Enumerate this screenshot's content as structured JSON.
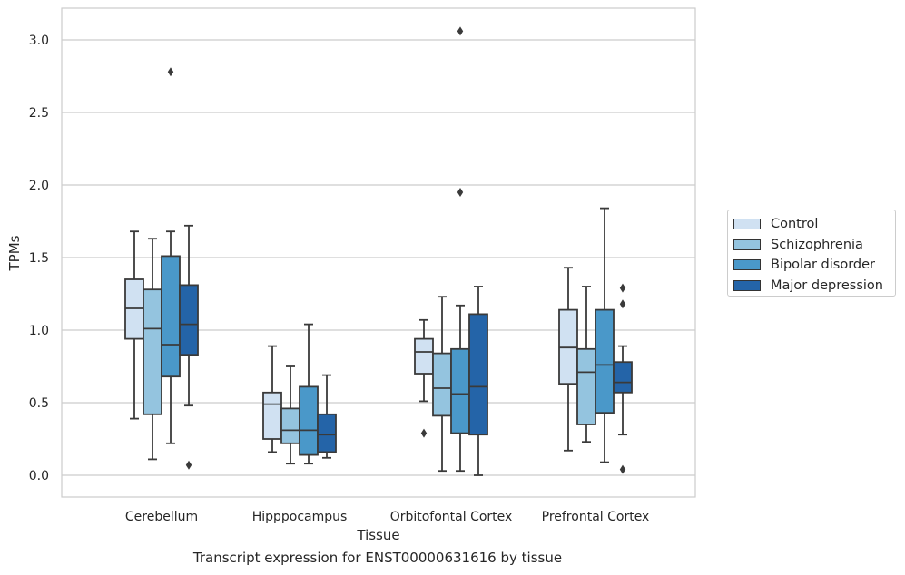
{
  "chart_data": {
    "type": "box",
    "title": "",
    "xlabel": "Tissue",
    "ylabel": "TPMs",
    "caption": "Transcript expression for ENST00000631616 by tissue",
    "ylim": [
      -0.15,
      3.22
    ],
    "yticks": [
      "0.0",
      "0.5",
      "1.0",
      "1.5",
      "2.0",
      "2.5",
      "3.0"
    ],
    "grid": true,
    "legend_position": "right",
    "categories": [
      "Cerebellum",
      "Hipppocampus",
      "Orbitofontal Cortex",
      "Prefrontal Cortex"
    ],
    "series": [
      {
        "name": "Control",
        "color": "#d0e1f2",
        "boxes": [
          {
            "whislo": 0.39,
            "q1": 0.94,
            "med": 1.15,
            "q3": 1.35,
            "whishi": 1.68,
            "fliers": []
          },
          {
            "whislo": 0.16,
            "q1": 0.25,
            "med": 0.49,
            "q3": 0.57,
            "whishi": 0.89,
            "fliers": []
          },
          {
            "whislo": 0.51,
            "q1": 0.7,
            "med": 0.85,
            "q3": 0.94,
            "whishi": 1.07,
            "fliers": [
              0.29
            ]
          },
          {
            "whislo": 0.17,
            "q1": 0.63,
            "med": 0.88,
            "q3": 1.14,
            "whishi": 1.43,
            "fliers": []
          }
        ]
      },
      {
        "name": "Schizophrenia",
        "color": "#94c4df",
        "boxes": [
          {
            "whislo": 0.11,
            "q1": 0.42,
            "med": 1.01,
            "q3": 1.28,
            "whishi": 1.63,
            "fliers": []
          },
          {
            "whislo": 0.08,
            "q1": 0.22,
            "med": 0.31,
            "q3": 0.46,
            "whishi": 0.75,
            "fliers": []
          },
          {
            "whislo": 0.03,
            "q1": 0.41,
            "med": 0.6,
            "q3": 0.84,
            "whishi": 1.23,
            "fliers": []
          },
          {
            "whislo": 0.23,
            "q1": 0.35,
            "med": 0.71,
            "q3": 0.87,
            "whishi": 1.3,
            "fliers": []
          }
        ]
      },
      {
        "name": "Bipolar disorder",
        "color": "#4a98c9",
        "boxes": [
          {
            "whislo": 0.22,
            "q1": 0.68,
            "med": 0.9,
            "q3": 1.51,
            "whishi": 1.68,
            "fliers": [
              2.78
            ]
          },
          {
            "whislo": 0.08,
            "q1": 0.14,
            "med": 0.31,
            "q3": 0.61,
            "whishi": 1.04,
            "fliers": []
          },
          {
            "whislo": 0.03,
            "q1": 0.29,
            "med": 0.56,
            "q3": 0.87,
            "whishi": 1.17,
            "fliers": [
              1.95,
              3.06
            ]
          },
          {
            "whislo": 0.09,
            "q1": 0.43,
            "med": 0.76,
            "q3": 1.14,
            "whishi": 1.84,
            "fliers": []
          }
        ]
      },
      {
        "name": "Major depression",
        "color": "#2464a8",
        "boxes": [
          {
            "whislo": 0.48,
            "q1": 0.83,
            "med": 1.04,
            "q3": 1.31,
            "whishi": 1.72,
            "fliers": [
              0.07
            ]
          },
          {
            "whislo": 0.12,
            "q1": 0.16,
            "med": 0.28,
            "q3": 0.42,
            "whishi": 0.69,
            "fliers": []
          },
          {
            "whislo": 0.0,
            "q1": 0.28,
            "med": 0.61,
            "q3": 1.11,
            "whishi": 1.3,
            "fliers": []
          },
          {
            "whislo": 0.28,
            "q1": 0.57,
            "med": 0.64,
            "q3": 0.78,
            "whishi": 0.89,
            "fliers": [
              0.04,
              1.18,
              1.29
            ]
          }
        ]
      }
    ]
  }
}
